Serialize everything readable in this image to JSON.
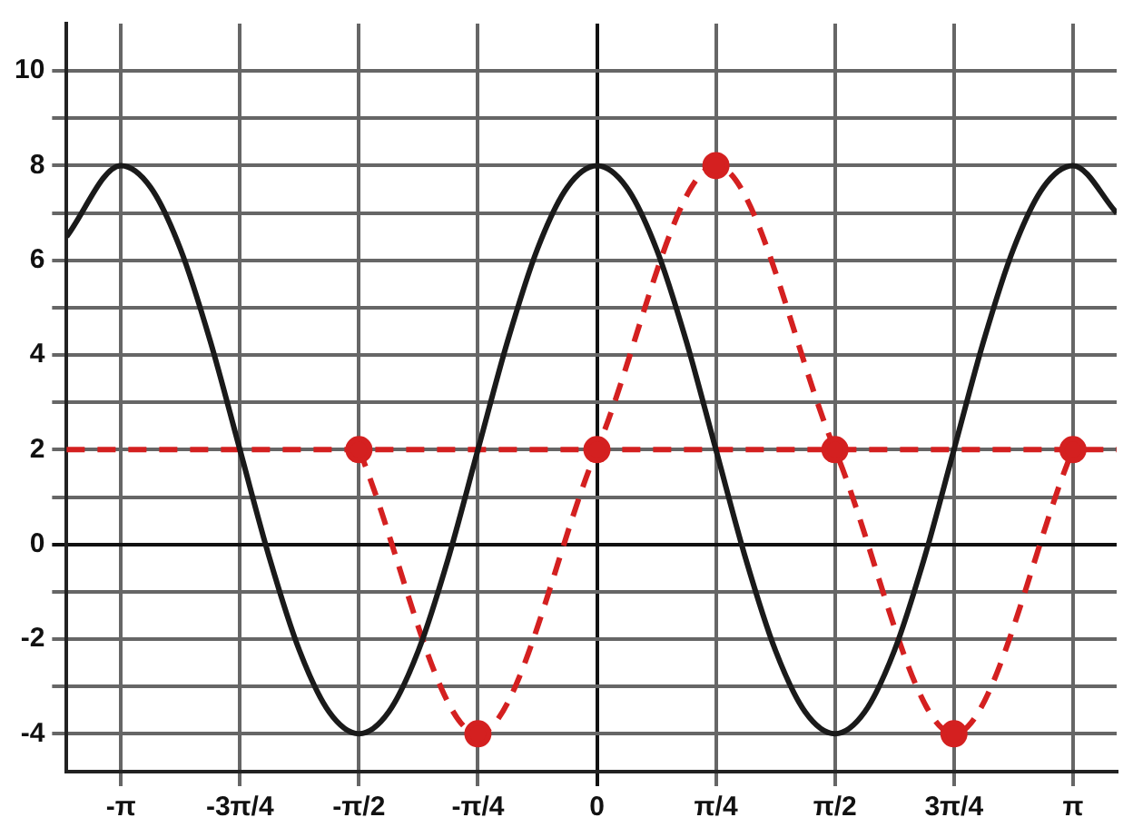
{
  "chart_data": {
    "type": "line",
    "xlim": [
      -3.5,
      3.43
    ],
    "ylim": [
      -4.8,
      11
    ],
    "xticks": [
      {
        "value": -3.1416,
        "label": "-π"
      },
      {
        "value": -2.3562,
        "label": "-3π/4"
      },
      {
        "value": -1.5708,
        "label": "-π/2"
      },
      {
        "value": -0.7854,
        "label": "-π/4"
      },
      {
        "value": 0,
        "label": "0"
      },
      {
        "value": 0.7854,
        "label": "π/4"
      },
      {
        "value": 1.5708,
        "label": "π/2"
      },
      {
        "value": 2.3562,
        "label": "3π/4"
      },
      {
        "value": 3.1416,
        "label": "π"
      }
    ],
    "yticks": [
      -4,
      {
        "value": -3,
        "label": null
      },
      -2,
      {
        "value": -1,
        "label": null
      },
      0,
      {
        "value": 1,
        "label": null
      },
      2,
      {
        "value": 3,
        "label": null
      },
      4,
      {
        "value": 5,
        "label": null
      },
      6,
      {
        "value": 7,
        "label": null
      },
      8,
      {
        "value": 9,
        "label": null
      },
      10
    ],
    "grid": true,
    "series": [
      {
        "color": "#1a1a1a",
        "marker": "none",
        "line_style": "solid",
        "x": [
          -3.5,
          -3.1416,
          -2.9452,
          -2.7489,
          -2.5525,
          -2.3562,
          -2.1598,
          -1.9635,
          -1.7671,
          -1.5708,
          -1.3744,
          -1.1781,
          -0.9817,
          -0.7854,
          -0.589,
          -0.3927,
          -0.1963,
          0,
          0.1963,
          0.3927,
          0.589,
          0.7854,
          0.9817,
          1.1781,
          1.3744,
          1.5708,
          1.7671,
          1.9635,
          2.1598,
          2.3562,
          2.5525,
          2.7489,
          2.9452,
          3.1416,
          3.43
        ],
        "values": [
          6.5,
          8,
          7.54,
          6.24,
          4.3,
          2,
          -0.3,
          -2.24,
          -3.54,
          -4,
          -3.54,
          -2.24,
          -0.3,
          2,
          4.3,
          6.24,
          7.54,
          8,
          7.54,
          6.24,
          4.3,
          2,
          -0.3,
          -2.24,
          -3.54,
          -4,
          -3.54,
          -2.24,
          -0.3,
          2,
          4.3,
          6.24,
          7.54,
          8,
          7
        ]
      },
      {
        "color": "#d42020",
        "marker": "circle",
        "line_style": "dashed",
        "x": [
          -1.5708,
          -0.7854,
          0,
          0.7854,
          1.5708,
          2.3562,
          3.1416
        ],
        "values": [
          2,
          -4,
          2,
          8,
          2,
          -4,
          2
        ]
      }
    ],
    "ref_lines": [
      {
        "axis": "y",
        "value": 2,
        "color": "#d42020",
        "line_style": "dashed"
      }
    ]
  }
}
